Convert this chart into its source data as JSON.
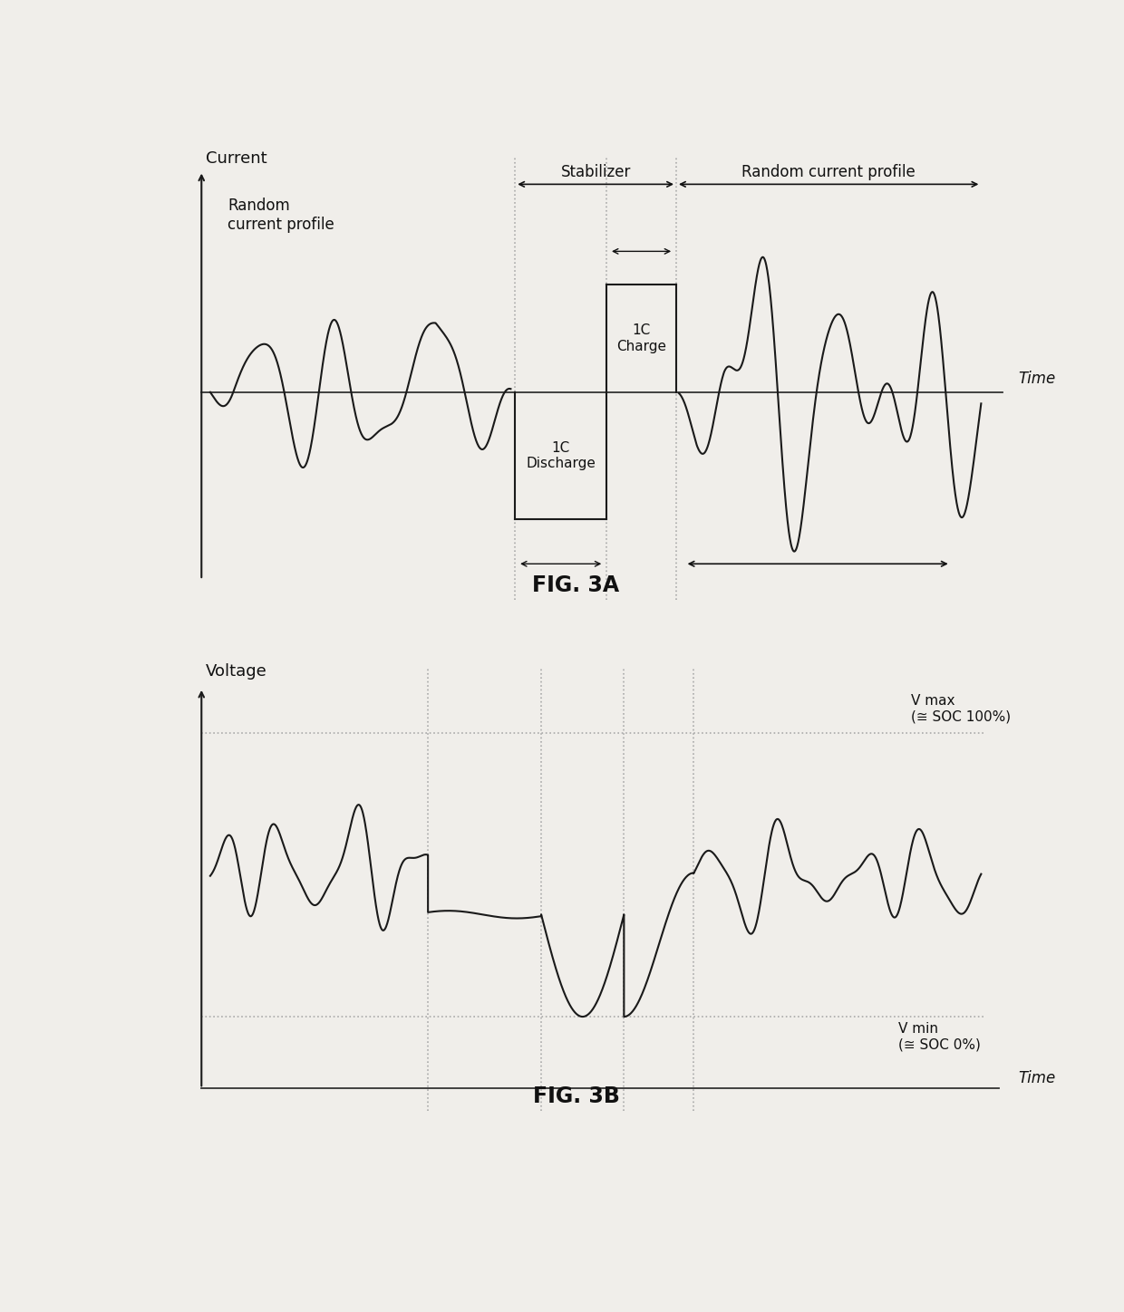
{
  "fig3a_title": "FIG. 3A",
  "fig3b_title": "FIG. 3B",
  "background_color": "#f0eeea",
  "line_color": "#1a1a1a",
  "vline_color": "#aaaaaa",
  "hline_color": "#333333",
  "annotation_color": "#111111",
  "label_random_left": "Random\ncurrent profile",
  "label_stabilizer": "Stabilizer",
  "label_random_right": "Random current profile",
  "label_1c_charge": "1C\nCharge",
  "label_1c_discharge": "1C\nDischarge",
  "label_current": "Current",
  "label_time_3a": "Time",
  "label_voltage": "Voltage",
  "label_time_3b": "Time",
  "label_vmax": "V max\n(≅ SOC 100%)",
  "label_vmin": "V min\n(≅ SOC 0%)",
  "3a_vline1": 0.43,
  "3a_vline2": 0.535,
  "3a_vline3": 0.615,
  "3b_vline1": 0.33,
  "3b_vline2": 0.46,
  "3b_vline3": 0.555,
  "3b_vline4": 0.635
}
